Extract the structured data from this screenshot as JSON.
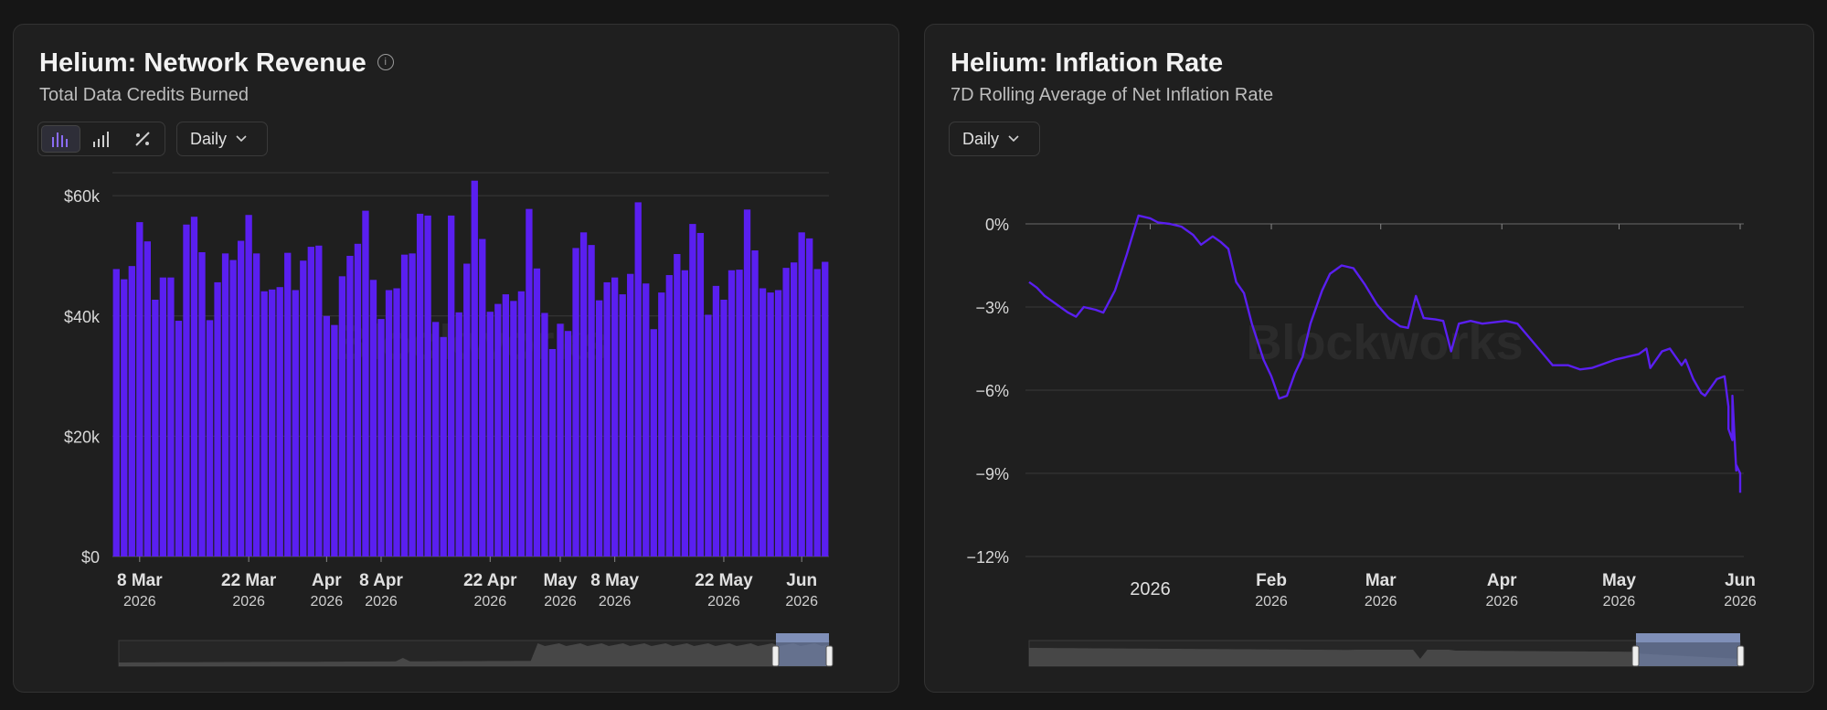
{
  "left": {
    "title": "Helium: Network Revenue",
    "subtitle": "Total Data Credits Burned",
    "dropdown": "Daily",
    "watermark": "Blockworks",
    "chart_data": {
      "type": "bar",
      "color": "#5a1ff0",
      "y_ticks": [
        "$60k",
        "$40k",
        "$20k",
        "$0"
      ],
      "y_tick_values": [
        60000,
        40000,
        20000,
        0
      ],
      "ylim": [
        0,
        62000
      ],
      "x_ticks": [
        {
          "label": "8 Mar",
          "year": "2026",
          "index": 3
        },
        {
          "label": "22 Mar",
          "year": "2026",
          "index": 17
        },
        {
          "label": "Apr",
          "year": "2026",
          "index": 27
        },
        {
          "label": "8 Apr",
          "year": "2026",
          "index": 34
        },
        {
          "label": "22 Apr",
          "year": "2026",
          "index": 48
        },
        {
          "label": "May",
          "year": "2026",
          "index": 57
        },
        {
          "label": "8 May",
          "year": "2026",
          "index": 64
        },
        {
          "label": "22 May",
          "year": "2026",
          "index": 78
        },
        {
          "label": "Jun",
          "year": "2026",
          "index": 88
        }
      ],
      "values": [
        47800,
        46100,
        48300,
        55600,
        52400,
        42700,
        46400,
        46400,
        39200,
        55200,
        56500,
        50600,
        39300,
        45600,
        50400,
        49300,
        52500,
        56800,
        50400,
        44100,
        44400,
        44800,
        50500,
        44300,
        49200,
        51500,
        51700,
        40000,
        38500,
        46600,
        50000,
        52000,
        57500,
        46000,
        39500,
        44300,
        44600,
        50200,
        50400,
        57000,
        56700,
        39000,
        36500,
        56700,
        40600,
        48700,
        62500,
        52800,
        40700,
        42000,
        43600,
        42500,
        44100,
        57800,
        47900,
        40500,
        34500,
        38700,
        37500,
        51300,
        53900,
        51800,
        42600,
        45600,
        46400,
        43600,
        47000,
        58900,
        45400,
        37800,
        43900,
        46800,
        50300,
        47600,
        55300,
        53800,
        40200,
        45000,
        42700,
        47600,
        47700,
        57700,
        50900,
        44600,
        43900,
        44300,
        48000,
        48900,
        53900,
        52900,
        47800,
        49000
      ]
    }
  },
  "right": {
    "title": "Helium: Inflation Rate",
    "subtitle": "7D Rolling Average of Net Inflation Rate",
    "dropdown": "Daily",
    "watermark": "Blockworks",
    "chart_data": {
      "type": "line",
      "color": "#5a1ff0",
      "y_ticks": [
        "0%",
        "−3%",
        "−6%",
        "−9%",
        "−12%"
      ],
      "y_tick_values": [
        0,
        -3,
        -6,
        -9,
        -12
      ],
      "ylim": [
        -12,
        0.5
      ],
      "xlim": [
        "2025-12-01",
        "2026-06-01"
      ],
      "x_ticks": [
        {
          "label": "2026",
          "year": "",
          "date": "2026-01-01"
        },
        {
          "label": "Feb",
          "year": "2026",
          "date": "2026-02-01"
        },
        {
          "label": "Mar",
          "year": "2026",
          "date": "2026-03-01"
        },
        {
          "label": "Apr",
          "year": "2026",
          "date": "2026-04-01"
        },
        {
          "label": "May",
          "year": "2026",
          "date": "2026-05-01"
        },
        {
          "label": "Jun",
          "year": "2026",
          "date": "2026-06-01"
        }
      ],
      "points": [
        [
          "2025-12-01",
          -2.1
        ],
        [
          "2025-12-03",
          -2.3
        ],
        [
          "2025-12-05",
          -2.6
        ],
        [
          "2025-12-08",
          -2.9
        ],
        [
          "2025-12-11",
          -3.2
        ],
        [
          "2025-12-13",
          -3.35
        ],
        [
          "2025-12-15",
          -3.0
        ],
        [
          "2025-12-18",
          -3.1
        ],
        [
          "2025-12-20",
          -3.2
        ],
        [
          "2025-12-23",
          -2.4
        ],
        [
          "2025-12-26",
          -1.1
        ],
        [
          "2025-12-29",
          0.3
        ],
        [
          "2026-01-01",
          0.2
        ],
        [
          "2026-01-03",
          0.05
        ],
        [
          "2026-01-06",
          0.0
        ],
        [
          "2026-01-09",
          -0.1
        ],
        [
          "2026-01-12",
          -0.4
        ],
        [
          "2026-01-14",
          -0.75
        ],
        [
          "2026-01-17",
          -0.45
        ],
        [
          "2026-01-19",
          -0.65
        ],
        [
          "2026-01-21",
          -0.9
        ],
        [
          "2026-01-23",
          -2.1
        ],
        [
          "2026-01-25",
          -2.5
        ],
        [
          "2026-01-27",
          -3.6
        ],
        [
          "2026-01-30",
          -4.9
        ],
        [
          "2026-02-01",
          -5.5
        ],
        [
          "2026-02-03",
          -6.3
        ],
        [
          "2026-02-05",
          -6.2
        ],
        [
          "2026-02-07",
          -5.4
        ],
        [
          "2026-02-09",
          -4.8
        ],
        [
          "2026-02-11",
          -3.6
        ],
        [
          "2026-02-14",
          -2.4
        ],
        [
          "2026-02-16",
          -1.8
        ],
        [
          "2026-02-19",
          -1.5
        ],
        [
          "2026-02-22",
          -1.6
        ],
        [
          "2026-02-25",
          -2.2
        ],
        [
          "2026-02-28",
          -2.9
        ],
        [
          "2026-03-03",
          -3.4
        ],
        [
          "2026-03-06",
          -3.7
        ],
        [
          "2026-03-08",
          -3.75
        ],
        [
          "2026-03-10",
          -2.6
        ],
        [
          "2026-03-12",
          -3.4
        ],
        [
          "2026-03-15",
          -3.45
        ],
        [
          "2026-03-17",
          -3.5
        ],
        [
          "2026-03-19",
          -4.6
        ],
        [
          "2026-03-21",
          -3.6
        ],
        [
          "2026-03-24",
          -3.5
        ],
        [
          "2026-03-27",
          -3.6
        ],
        [
          "2026-03-30",
          -3.55
        ],
        [
          "2026-04-02",
          -3.5
        ],
        [
          "2026-04-05",
          -3.6
        ],
        [
          "2026-04-08",
          -4.1
        ],
        [
          "2026-04-11",
          -4.6
        ],
        [
          "2026-04-14",
          -5.1
        ],
        [
          "2026-04-18",
          -5.1
        ],
        [
          "2026-04-21",
          -5.25
        ],
        [
          "2026-04-24",
          -5.2
        ],
        [
          "2026-04-27",
          -5.05
        ],
        [
          "2026-04-30",
          -4.9
        ],
        [
          "2026-05-03",
          -4.8
        ],
        [
          "2026-05-06",
          -4.7
        ],
        [
          "2026-05-08",
          -4.5
        ],
        [
          "2026-05-09",
          -5.2
        ],
        [
          "2026-05-12",
          -4.6
        ],
        [
          "2026-05-14",
          -4.5
        ],
        [
          "2026-05-17",
          -5.1
        ],
        [
          "2026-05-18",
          -4.9
        ],
        [
          "2026-05-20",
          -5.6
        ],
        [
          "2026-05-22",
          -6.1
        ],
        [
          "2026-05-23",
          -6.2
        ],
        [
          "2026-05-26",
          -5.6
        ],
        [
          "2026-05-28",
          -5.5
        ],
        [
          "2026-05-29",
          -6.6
        ],
        [
          "2026-05-29",
          -7.4
        ],
        [
          "2026-05-30",
          -7.8
        ],
        [
          "2026-05-30",
          -6.2
        ],
        [
          "2026-05-31",
          -8.9
        ],
        [
          "2026-05-31",
          -8.7
        ],
        [
          "2026-06-01",
          -9.0
        ],
        [
          "2026-06-01",
          -9.7
        ]
      ]
    }
  }
}
